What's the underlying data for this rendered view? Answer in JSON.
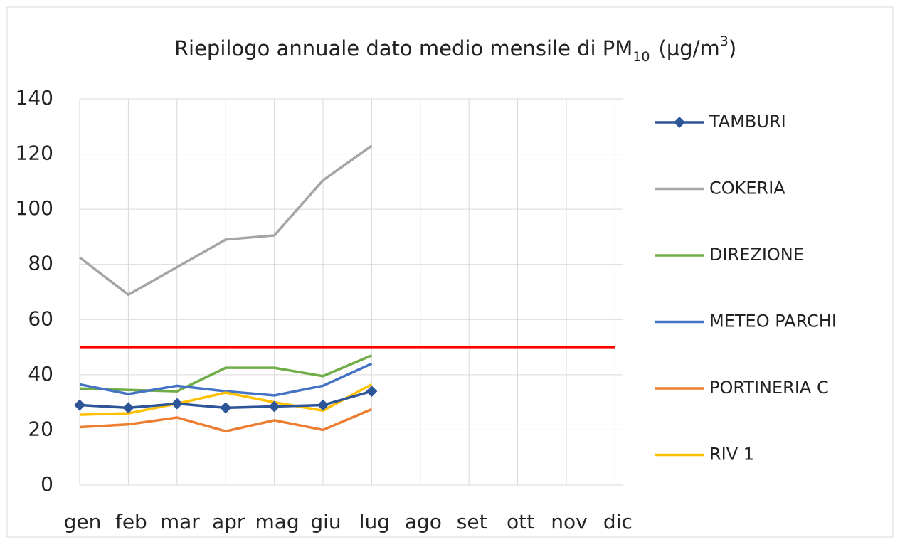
{
  "chart_data": {
    "type": "line",
    "title": {
      "main": "Riepilogo annuale dato medio mensile di PM",
      "sub": "10",
      "unit": "(µg/m",
      "sup": "3",
      "close": ")"
    },
    "categories": [
      "gen",
      "feb",
      "mar",
      "apr",
      "mag",
      "giu",
      "lug",
      "ago",
      "set",
      "ott",
      "nov",
      "dic"
    ],
    "series": [
      {
        "name": "TAMBURI",
        "color": "#2e5597",
        "marker": "diamond",
        "values": [
          29,
          28,
          29.5,
          28,
          28.5,
          29,
          34,
          null,
          null,
          null,
          null,
          null
        ]
      },
      {
        "name": "COKERIA",
        "color": "#a5a5a5",
        "values": [
          82.5,
          69,
          79,
          89,
          90.5,
          110.5,
          123,
          null,
          null,
          null,
          null,
          null
        ]
      },
      {
        "name": "DIREZIONE",
        "color": "#70ad47",
        "values": [
          35,
          34.5,
          34,
          42.5,
          42.5,
          39.5,
          47,
          null,
          null,
          null,
          null,
          null
        ]
      },
      {
        "name": "METEO PARCHI",
        "color": "#4472c4",
        "values": [
          36.5,
          33,
          36,
          34,
          32.5,
          36,
          44,
          null,
          null,
          null,
          null,
          null
        ]
      },
      {
        "name": "PORTINERIA C",
        "color": "#ed7d31",
        "values": [
          21,
          22,
          24.5,
          19.5,
          23.5,
          20,
          27.5,
          null,
          null,
          null,
          null,
          null
        ]
      },
      {
        "name": "RIV 1",
        "color": "#ffc000",
        "values": [
          25.5,
          26,
          29.5,
          33.5,
          30,
          27,
          36.5,
          null,
          null,
          null,
          null,
          null
        ]
      },
      {
        "color": "#ff0000",
        "values": [
          50,
          50,
          50,
          50,
          50,
          50,
          50,
          50,
          50,
          50,
          50,
          50
        ]
      }
    ],
    "ylim": [
      0,
      140
    ],
    "yticks": [
      0,
      20,
      40,
      60,
      80,
      100,
      120,
      140
    ],
    "grid": true,
    "legend": "right"
  }
}
